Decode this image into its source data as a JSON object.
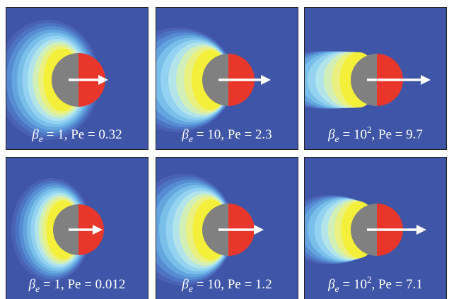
{
  "panels": [
    {
      "caption": [
        {
          "text": "β"
        },
        {
          "sub": "e"
        },
        {
          "text": " = 1, Pe = 0.32"
        }
      ]
    },
    {
      "caption": [
        {
          "text": "β"
        },
        {
          "sub": "e"
        },
        {
          "text": " = 10, Pe = 2.3"
        }
      ]
    },
    {
      "caption": [
        {
          "text": "β"
        },
        {
          "sub": "e"
        },
        {
          "text": " = 10"
        },
        {
          "sup": "2"
        },
        {
          "text": ", Pe = 9.7"
        }
      ]
    },
    {
      "caption": [
        {
          "text": "β"
        },
        {
          "sub": "e"
        },
        {
          "text": " = 1, Pe = 0.012"
        }
      ]
    },
    {
      "caption": [
        {
          "text": "β"
        },
        {
          "sub": "e"
        },
        {
          "text": " = 10, Pe = 1.2"
        }
      ]
    },
    {
      "caption": [
        {
          "text": "β"
        },
        {
          "sub": "e"
        },
        {
          "text": " = 10"
        },
        {
          "sup": "2"
        },
        {
          "text": ", Pe = 7.1"
        }
      ]
    }
  ]
}
